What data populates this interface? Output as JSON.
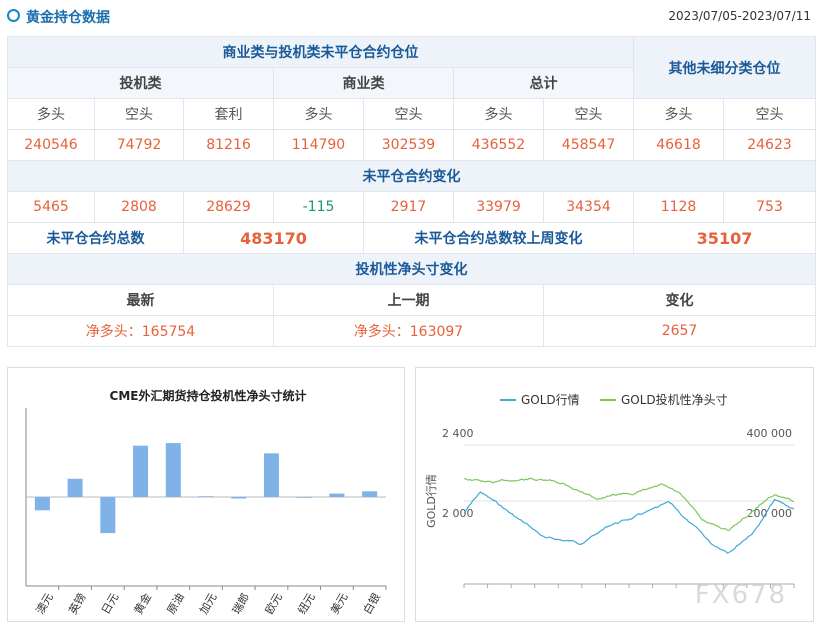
{
  "header": {
    "title": "黄金持仓数据",
    "date_range": "2023/07/05-2023/07/11"
  },
  "table": {
    "group_title": "商业类与投机类未平仓合约仓位",
    "other_title": "其他未细分类仓位",
    "cat_spec": "投机类",
    "cat_comm": "商业类",
    "cat_total": "总计",
    "sub": {
      "long": "多头",
      "short": "空头",
      "spread": "套利"
    },
    "values": [
      "240546",
      "74792",
      "81216",
      "114790",
      "302539",
      "436552",
      "458547",
      "46618",
      "24623"
    ],
    "change_title": "未平仓合约变化",
    "changes": [
      "5465",
      "2808",
      "28629",
      "-115",
      "2917",
      "33979",
      "34354",
      "1128",
      "753"
    ],
    "total_label": "未平仓合约总数",
    "total_value": "483170",
    "weekchange_label": "未平仓合约总数较上周变化",
    "weekchange_value": "35107",
    "net_title": "投机性净头寸变化",
    "latest_label": "最新",
    "prev_label": "上一期",
    "change_label": "变化",
    "latest_value": "净多头：165754",
    "prev_value": "净多头：163097",
    "diff_value": "2657"
  },
  "chart_data": [
    {
      "type": "bar",
      "title": "CME外汇期货持仓投机性净头寸统计",
      "categories": [
        "澳元",
        "英镑",
        "日元",
        "黄金",
        "原油",
        "加元",
        "瑞郎",
        "欧元",
        "纽元",
        "美元",
        "白银"
      ],
      "values": [
        -0.35,
        0.48,
        -0.95,
        1.35,
        1.42,
        0.02,
        -0.04,
        1.15,
        0.0,
        0.09,
        0.15
      ],
      "colors": {
        "bar": "#7fb3e8"
      }
    },
    {
      "type": "line",
      "legend": [
        "GOLD行情",
        "GOLD投机性净头寸"
      ],
      "ylabel": "GOLD行情",
      "left_axis_ticks": [
        "2 400",
        "2 000"
      ],
      "right_axis_ticks": [
        "400 000",
        "200 000"
      ],
      "left_range": [
        1600,
        2400
      ],
      "right_range": [
        0,
        400000
      ],
      "colors": {
        "gold": "#3fa9d8",
        "net": "#7dc85a"
      }
    }
  ],
  "watermark": "FX678"
}
